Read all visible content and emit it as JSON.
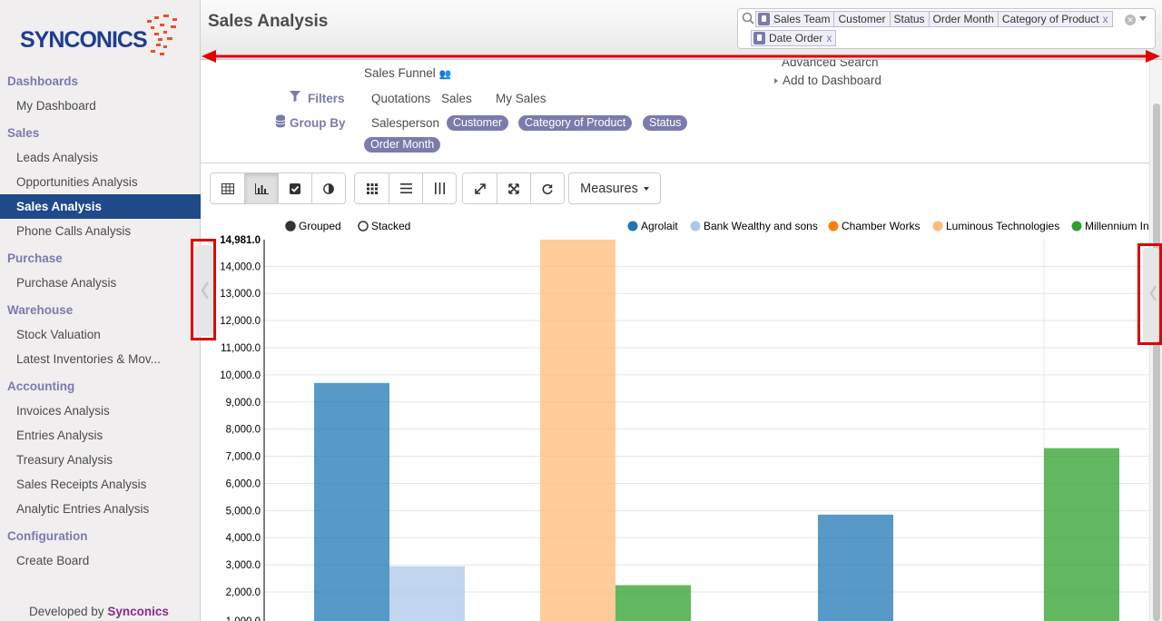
{
  "sidebar": {
    "logo_text": "SYNCONICS",
    "sections": [
      {
        "label": "Dashboards",
        "items": [
          "My Dashboard"
        ]
      },
      {
        "label": "Sales",
        "items": [
          "Leads Analysis",
          "Opportunities Analysis",
          "Sales Analysis",
          "Phone Calls Analysis"
        ]
      },
      {
        "label": "Purchase",
        "items": [
          "Purchase Analysis"
        ]
      },
      {
        "label": "Warehouse",
        "items": [
          "Stock Valuation",
          "Latest Inventories & Mov..."
        ]
      },
      {
        "label": "Accounting",
        "items": [
          "Invoices Analysis",
          "Entries Analysis",
          "Treasury Analysis",
          "Sales Receipts Analysis",
          "Analytic Entries Analysis"
        ]
      },
      {
        "label": "Configuration",
        "items": [
          "Create Board"
        ]
      }
    ],
    "active_item": "Sales Analysis",
    "developed_by_prefix": "Developed by",
    "developed_by_name": "Synconics"
  },
  "header": {
    "title": "Sales Analysis",
    "search": {
      "groupby_facet": [
        "Sales Team",
        "Customer",
        "Status",
        "Order Month",
        "Category of Product"
      ],
      "date_facet": [
        "Date Order"
      ],
      "remove_glyph": "x"
    }
  },
  "drawer": {
    "funnel_label": "Sales Funnel",
    "filters_label": "Filters",
    "filters": [
      "Quotations",
      "Sales",
      "My Sales"
    ],
    "groupby_label": "Group By",
    "groupby_plain": "Salesperson",
    "groupby_active": [
      "Customer",
      "Category of Product",
      "Status",
      "Order Month"
    ],
    "advanced_search": "Advanced Search",
    "add_to_dashboard": "Add to Dashboard"
  },
  "toolbar": {
    "view_buttons": [
      "table-icon",
      "bar-chart-icon",
      "checkbox-icon",
      "pie-icon"
    ],
    "active_view": "bar-chart-icon",
    "layout_buttons": [
      "grid-icon",
      "list-icon",
      "columns-icon"
    ],
    "action_buttons": [
      "expand-icon",
      "fullscreen-icon",
      "refresh-icon"
    ],
    "measures_label": "Measures"
  },
  "chart_data": {
    "type": "bar",
    "mode_options": [
      "Grouped",
      "Stacked"
    ],
    "selected_mode": "Grouped",
    "series": [
      {
        "name": "Agrolait",
        "color": "#1f77b4",
        "values": [
          9700,
          null,
          4850,
          null
        ]
      },
      {
        "name": "Bank Wealthy and sons",
        "color": "#aec7e8",
        "values": [
          2950,
          null,
          null,
          null
        ]
      },
      {
        "name": "Chamber Works",
        "color": "#ff7f0e",
        "values": [
          null,
          null,
          null,
          null
        ]
      },
      {
        "name": "Luminous Technologies",
        "color": "#ffbb78",
        "values": [
          null,
          14981,
          null,
          null
        ]
      },
      {
        "name": "Millennium In",
        "color": "#2ca02c",
        "values": [
          null,
          2250,
          null,
          7300
        ]
      }
    ],
    "y_ticks": [
      "2,000.0",
      "3,000.0",
      "4,000.0",
      "5,000.0",
      "6,000.0",
      "7,000.0",
      "8,000.0",
      "9,000.0",
      "10,000.0",
      "11,000.0",
      "12,000.0",
      "13,000.0",
      "14,000.0",
      "14,981.0"
    ],
    "y_max": 14981,
    "grid": true
  }
}
